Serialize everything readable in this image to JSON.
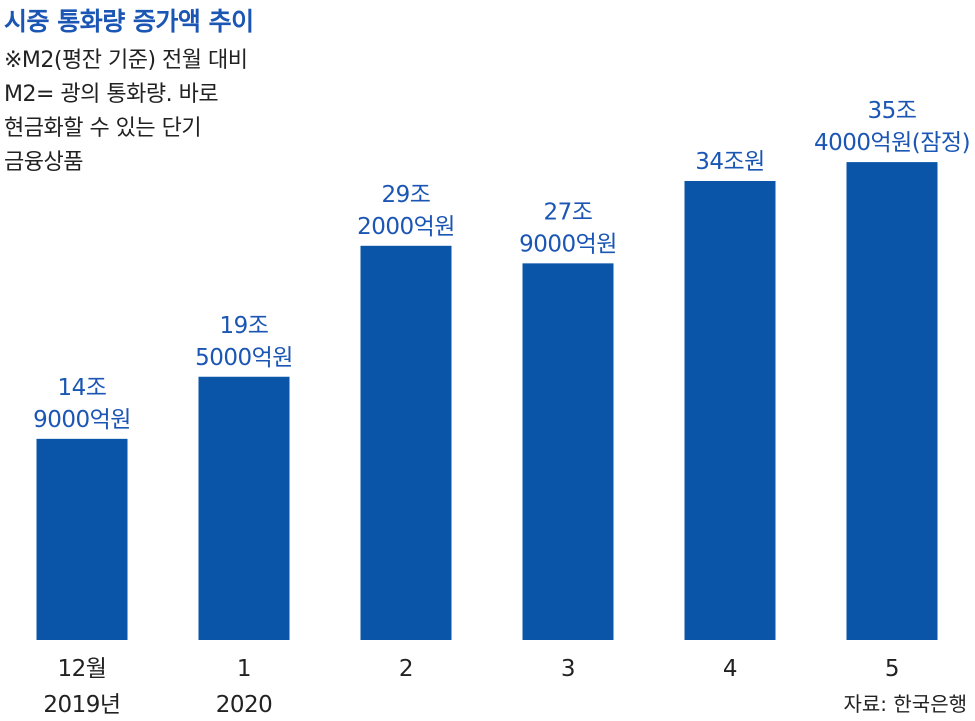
{
  "title": "시중 통화량 증가액 추이",
  "note": [
    "※M2(평잔 기준) 전월 대비",
    "M2= 광의 통화량. 바로",
    "현금화할 수 있는 단기",
    "금융상품"
  ],
  "source": "자료: 한국은행",
  "chart_data": {
    "type": "bar",
    "categories": [
      "12월 2019년",
      "1 2020",
      "2",
      "3",
      "4",
      "5"
    ],
    "category_lines": [
      [
        "12월",
        "2019년"
      ],
      [
        "1",
        "2020"
      ],
      [
        "2"
      ],
      [
        "3"
      ],
      [
        "4"
      ],
      [
        "5"
      ]
    ],
    "values": [
      149000,
      195000,
      292000,
      279000,
      340000,
      354000
    ],
    "value_unit": "억원",
    "data_labels": [
      [
        "14조",
        "9000억원"
      ],
      [
        "19조",
        "5000억원"
      ],
      [
        "29조",
        "2000억원"
      ],
      [
        "27조",
        "9000억원"
      ],
      [
        "34조원"
      ],
      [
        "35조",
        "4000억원(잠정)"
      ]
    ],
    "ylim": [
      0,
      400000
    ],
    "grid": false,
    "bar_color": "#0a55a8",
    "label_color": "#1b56b4"
  }
}
